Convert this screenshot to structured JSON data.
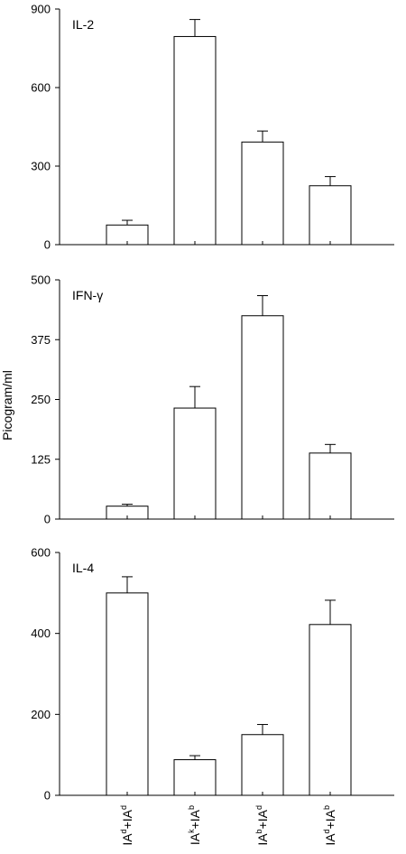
{
  "chart_data": {
    "type": "bar",
    "ylabel": "Picogram/ml",
    "categories": [
      {
        "base1": "IA",
        "sup1": "d",
        "mid": "+IA",
        "sup2": "d"
      },
      {
        "base1": "IA",
        "sup1": "k",
        "mid": "+IA",
        "sup2": "b"
      },
      {
        "base1": "IA",
        "sup1": "b",
        "mid": "+IA",
        "sup2": "d"
      },
      {
        "base1": "IA",
        "sup1": "d",
        "mid": "+IA",
        "sup2": "b"
      }
    ],
    "panels": [
      {
        "label": "IL-2",
        "ylim": [
          0,
          900
        ],
        "yticks": [
          0,
          300,
          600,
          900
        ],
        "values": [
          75,
          795,
          392,
          225
        ],
        "errors": [
          18,
          65,
          42,
          35
        ]
      },
      {
        "label": "IFN-γ",
        "ylim": [
          0,
          500
        ],
        "yticks": [
          0,
          125,
          250,
          375,
          500
        ],
        "values": [
          27,
          232,
          425,
          138
        ],
        "errors": [
          4,
          45,
          42,
          18
        ]
      },
      {
        "label": "IL-4",
        "ylim": [
          0,
          600
        ],
        "yticks": [
          0,
          200,
          400,
          600
        ],
        "values": [
          500,
          88,
          150,
          422
        ],
        "errors": [
          40,
          10,
          25,
          60
        ]
      }
    ]
  }
}
